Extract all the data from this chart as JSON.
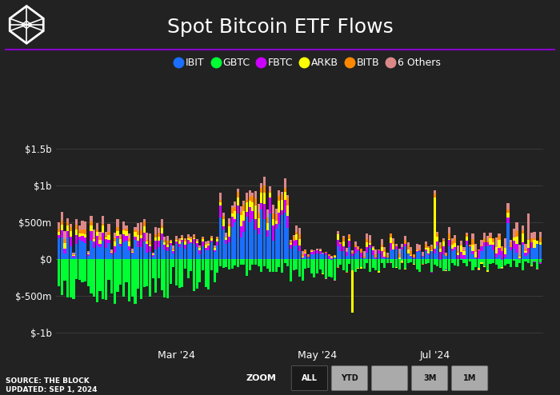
{
  "title": "Spot Bitcoin ETF Flows",
  "background_color": "#222222",
  "plot_bg_color": "#222222",
  "title_color": "#ffffff",
  "title_fontsize": 18,
  "ylabel_ticks": [
    "$-1b",
    "$-500m",
    "$0",
    "$500m",
    "$1b",
    "$1.5b"
  ],
  "ylabel_values": [
    -1000,
    -500,
    0,
    500,
    1000,
    1500
  ],
  "ylim": [
    -1150,
    1700
  ],
  "xtick_labels": [
    "Mar '24",
    "May '24",
    "Jul '24"
  ],
  "source_text": "SOURCE: THE BLOCK\nUPDATED: SEP 1, 2024",
  "zoom_label": "ZOOM",
  "zoom_buttons": [
    "ALL",
    "YTD",
    "",
    "3M",
    "1M"
  ],
  "legend_items": [
    "IBIT",
    "GBTC",
    "FBTC",
    "ARKB",
    "BITB",
    "6 Others"
  ],
  "legend_colors": [
    "#1a6fff",
    "#00ff33",
    "#cc00ff",
    "#ffff00",
    "#ff8800",
    "#dd8888"
  ],
  "purple_line_color": "#8800cc",
  "grid_color": "#3a3a3a",
  "n_bars": 165,
  "series_colors": {
    "IBIT": "#1a6fff",
    "GBTC": "#00ff33",
    "FBTC": "#cc00ff",
    "ARKB": "#ffff00",
    "BITB": "#ff8800",
    "Others": "#dd8888"
  },
  "figsize": [
    7.0,
    4.94
  ],
  "dpi": 100
}
